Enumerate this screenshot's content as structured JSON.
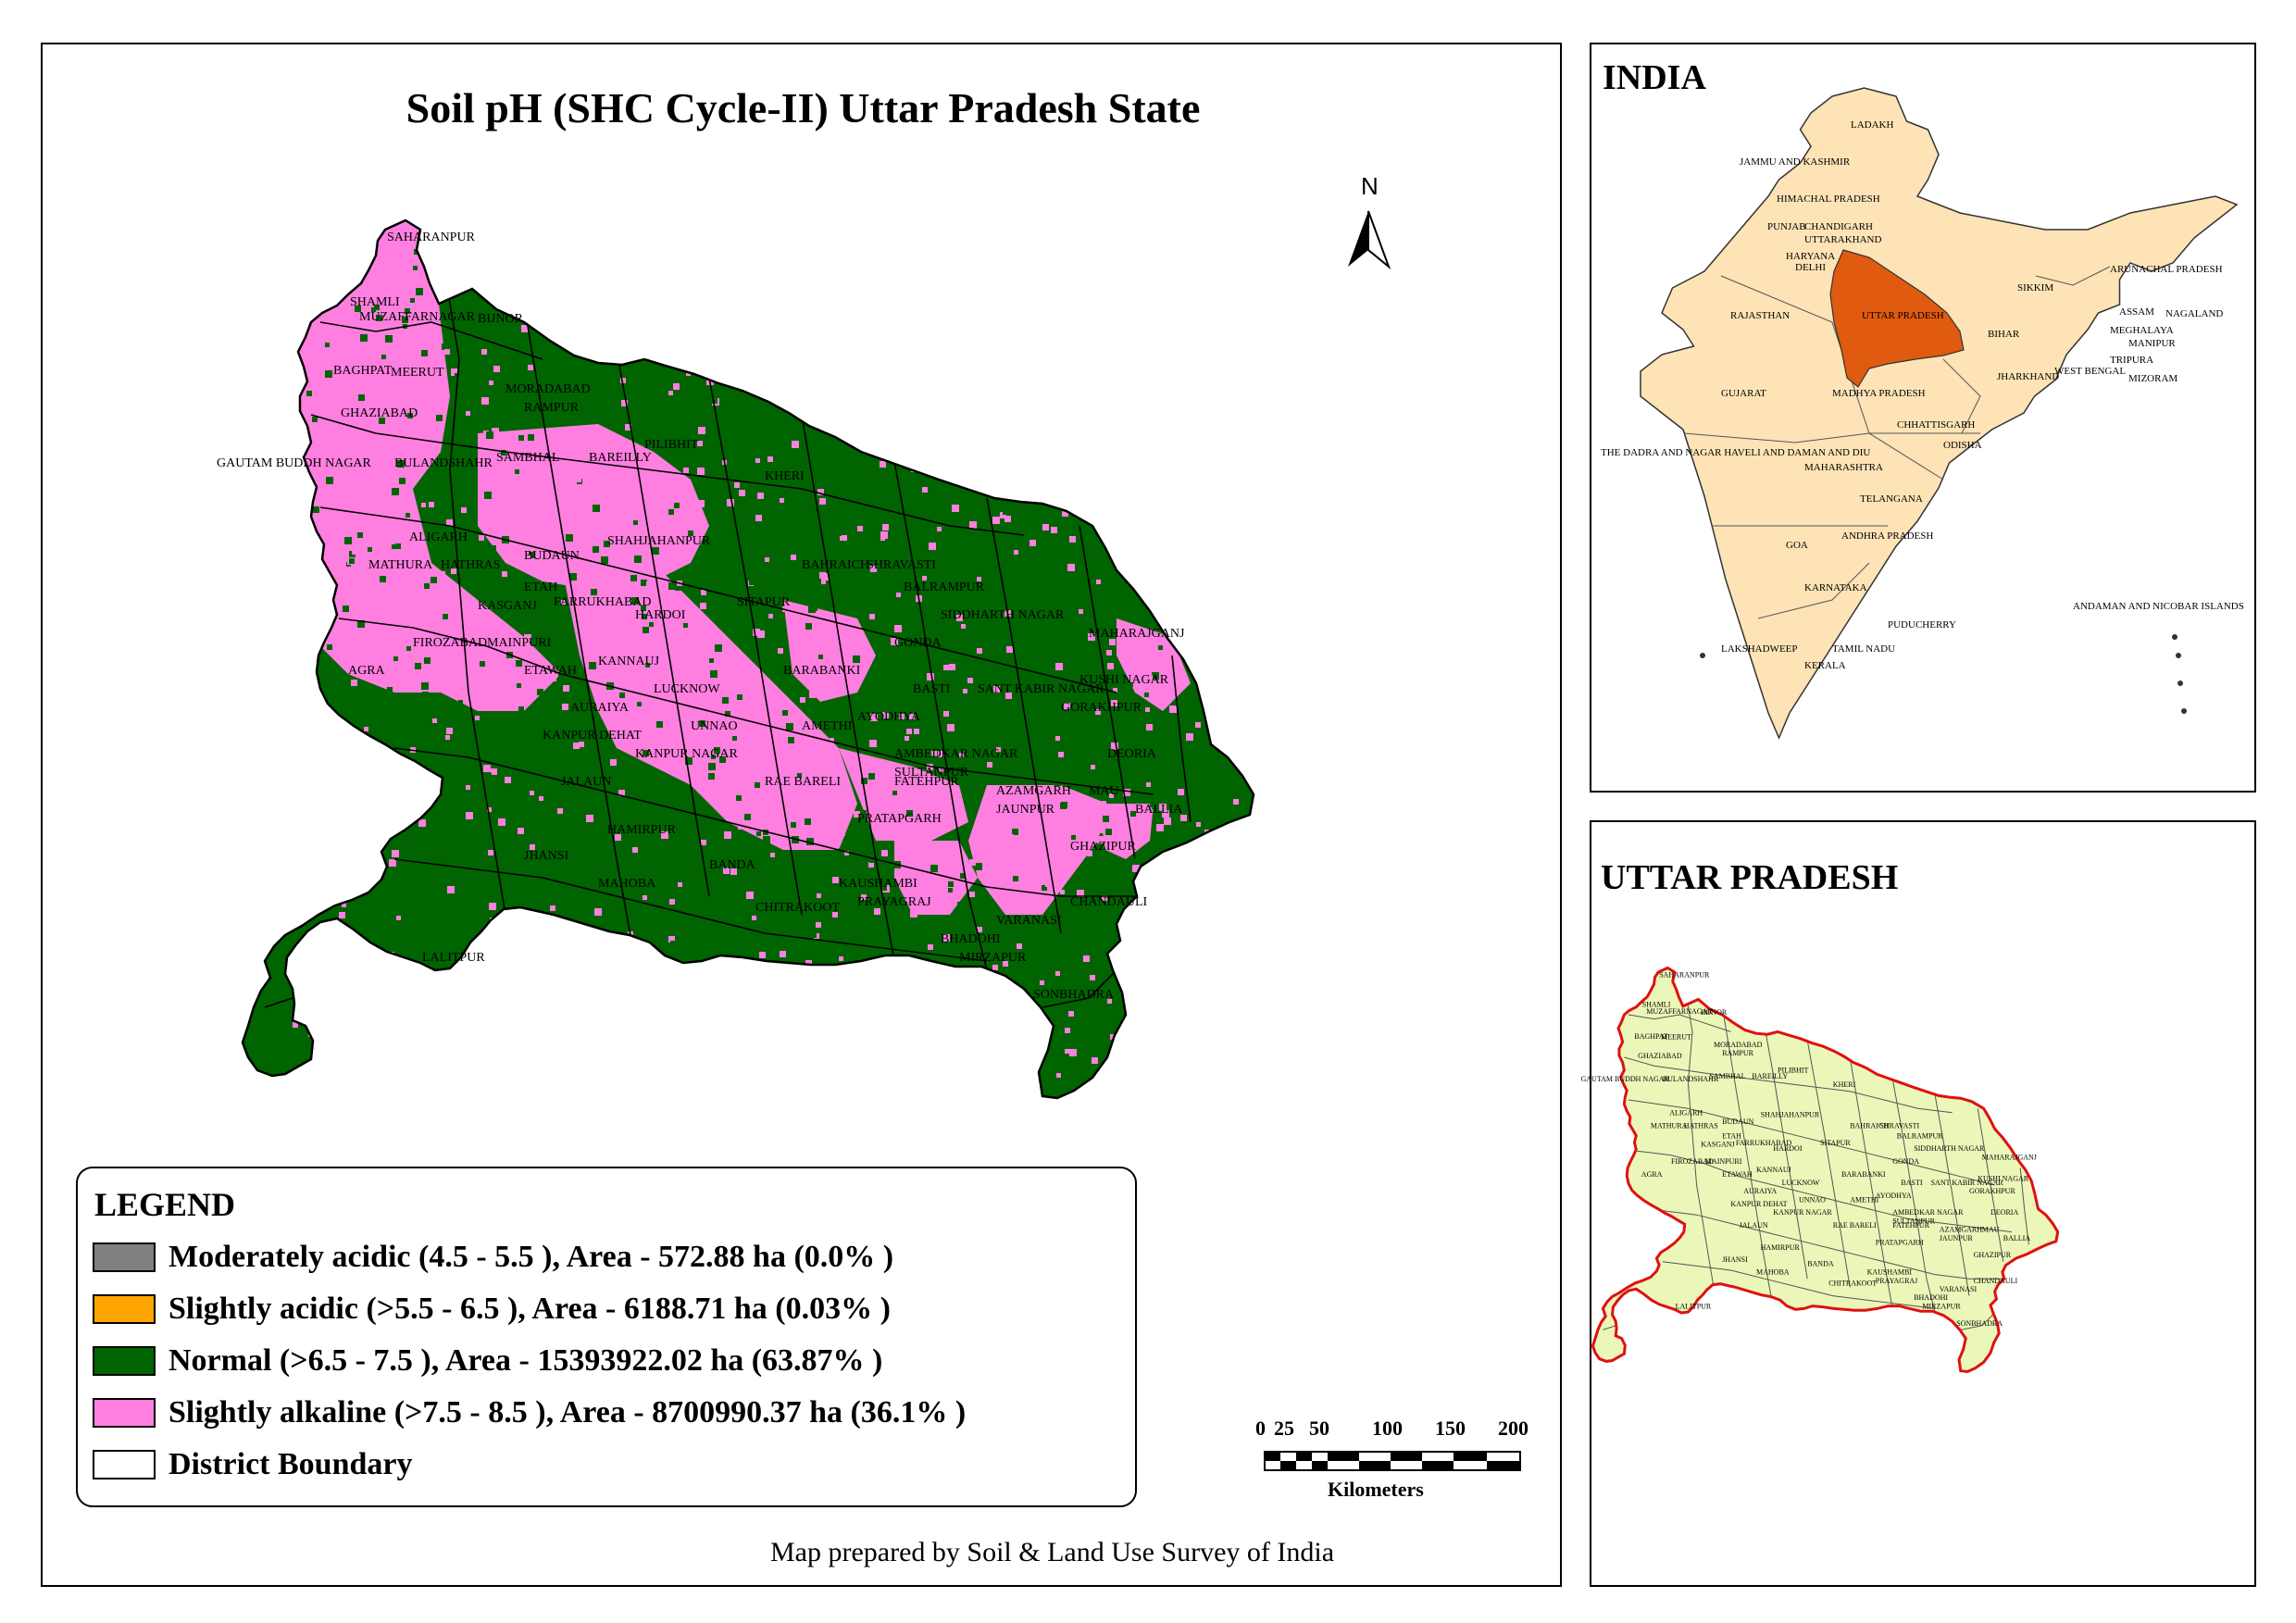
{
  "main_map": {
    "title": "Soil pH (SHC Cycle-II) Uttar Pradesh State",
    "north_label": "N",
    "credit": "Map prepared by Soil & Land Use Survey of India",
    "district_labels": [
      "SAHARANPUR",
      "SHAMLI",
      "MUZAFFARNAGAR",
      "BIJNOR",
      "BAGHPAT",
      "MEERUT",
      "GHAZIABAD",
      "MORADABAD",
      "RAMPUR",
      "GAUTAM BUDDH NAGAR",
      "BULANDSHAHR",
      "SAMBHAL",
      "BAREILLY",
      "PILIBHIT",
      "KHERI",
      "ALIGARH",
      "HATHRAS",
      "MATHURA",
      "BUDAUN",
      "SHAHJAHANPUR",
      "ETAH",
      "KASGANJ",
      "FARRUKHABAD",
      "HARDOI",
      "SITAPUR",
      "BAHRAICH",
      "SHRAVASTI",
      "BALRAMPUR",
      "SIDDHARTH NAGAR",
      "MAHARAJGANJ",
      "FIROZABAD",
      "MAINPURI",
      "AGRA",
      "KANNAUJ",
      "ETAWAH",
      "AURAIYA",
      "LUCKNOW",
      "BARABANKI",
      "GONDA",
      "BASTI",
      "SANT KABIR NAGAR",
      "KUSHI NAGAR",
      "GORAKHPUR",
      "DEORIA",
      "KANPUR DEHAT",
      "KANPUR NAGAR",
      "UNNAO",
      "AMETHI",
      "AYODHYA",
      "AMBEDKAR NAGAR",
      "SULTANPUR",
      "AZAMGARH",
      "MAU",
      "BALLIA",
      "RAE BARELI",
      "PRATAPGARH",
      "JAUNPUR",
      "GHAZIPUR",
      "FATEHPUR",
      "JALAUN",
      "HAMIRPUR",
      "JHANSI",
      "MAHOBA",
      "BANDA",
      "CHITRAKOOT",
      "KAUSHAMBI",
      "PRAYAGRAJ",
      "BHADOHI",
      "VARANASI",
      "CHANDAULI",
      "MIRZAPUR",
      "LALITPUR",
      "SONBHADRA"
    ]
  },
  "legend": {
    "title": "LEGEND",
    "items": [
      {
        "label": "Moderately acidic  (4.5 - 5.5 ), Area - 572.88  ha (0.0% )",
        "color": "#808080"
      },
      {
        "label": "Slightly acidic  (>5.5 - 6.5 ), Area - 6188.71  ha (0.03% )",
        "color": "#FFA500"
      },
      {
        "label": "Normal  (>6.5 - 7.5 ), Area - 15393922.02  ha (63.87% )",
        "color": "#006400"
      },
      {
        "label": "Slightly alkaline  (>7.5 - 8.5 ), Area - 8700990.37  ha (36.1% )",
        "color": "#FF7FE0"
      },
      {
        "label": "District Boundary",
        "color": "#FFFFFF"
      }
    ]
  },
  "scale_bar": {
    "ticks": [
      "0",
      "25",
      "50",
      "100",
      "150",
      "200"
    ],
    "unit": "Kilometers"
  },
  "india_inset": {
    "title": "INDIA",
    "state_labels": [
      "LADAKH",
      "JAMMU AND KASHMIR",
      "HIMACHAL PRADESH",
      "PUNJAB",
      "CHANDIGARH",
      "UTTARAKHAND",
      "HARYANA",
      "DELHI",
      "RAJASTHAN",
      "UTTAR PRADESH",
      "SIKKIM",
      "ARUNACHAL PRADESH",
      "ASSAM",
      "NAGALAND",
      "MEGHALAYA",
      "MANIPUR",
      "TRIPURA",
      "MIZORAM",
      "BIHAR",
      "WEST BENGAL",
      "JHARKHAND",
      "GUJARAT",
      "MADHYA PRADESH",
      "CHHATTISGARH",
      "ODISHA",
      "THE DADRA AND NAGAR HAVELI AND DAMAN AND DIU",
      "MAHARASHTRA",
      "TELANGANA",
      "GOA",
      "ANDHRA PRADESH",
      "KARNATAKA",
      "PUDUCHERRY",
      "ANDAMAN AND NICOBAR ISLANDS",
      "LAKSHADWEEP",
      "TAMIL NADU",
      "KERALA"
    ],
    "colors": {
      "land": "#FDE3B6",
      "highlight": "#E05A10"
    }
  },
  "up_inset": {
    "title": "UTTAR PRADESH",
    "colors": {
      "land": "#EAF7B8",
      "outline": "#E01010"
    }
  }
}
